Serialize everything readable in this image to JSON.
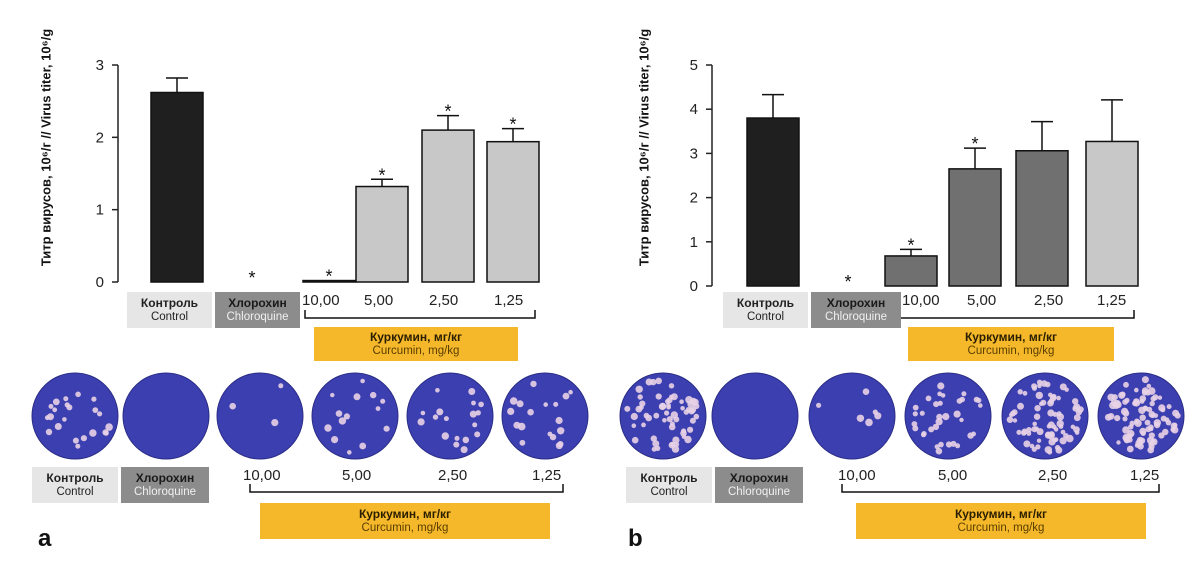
{
  "chart_data": [
    {
      "type": "bar",
      "panel": "a",
      "ylabel": "Титр вирусов, 10⁶/г // Virus titer, 10⁶/g",
      "ylim": [
        0,
        3
      ],
      "yticks": [
        "0",
        "1",
        "2",
        "3"
      ],
      "categories": [
        "Контроль Control",
        "Хлорохин Chloroquine",
        "10,00",
        "5,00",
        "2,50",
        "1,25"
      ],
      "values": [
        2.62,
        0.0,
        0.02,
        1.32,
        2.1,
        1.94
      ],
      "errors": [
        0.2,
        0.0,
        0.0,
        0.1,
        0.2,
        0.18
      ],
      "significant": [
        false,
        true,
        true,
        true,
        true,
        true
      ],
      "colors": [
        "#1f1f1f",
        "#ffffff",
        "#ffffff",
        "#c8c8c8",
        "#c8c8c8",
        "#c8c8c8"
      ]
    },
    {
      "type": "bar",
      "panel": "b",
      "ylabel": "Титр вирусов, 10⁶/г // Virus titer, 10⁶/g",
      "ylim": [
        0,
        5
      ],
      "yticks": [
        "0",
        "1",
        "2",
        "3",
        "4",
        "5"
      ],
      "categories": [
        "Контроль Control",
        "Хлорохин Chloroquine",
        "10,00",
        "5,00",
        "2,50",
        "1,25"
      ],
      "values": [
        3.8,
        0.0,
        0.68,
        2.65,
        3.06,
        3.27
      ],
      "errors": [
        0.53,
        0.0,
        0.15,
        0.47,
        0.66,
        0.94
      ],
      "significant": [
        false,
        true,
        true,
        true,
        false,
        false
      ],
      "colors": [
        "#1f1f1f",
        "#ffffff",
        "#707070",
        "#707070",
        "#707070",
        "#c8c8c8"
      ]
    }
  ],
  "labels": {
    "control_ru": "Контроль",
    "control_en": "Control",
    "chloroquine_ru": "Хлорохин",
    "chloroquine_en": "Chloroquine",
    "curcumin_ru": "Куркумин, мг/кг",
    "curcumin_en": "Curcumin, mg/kg",
    "doses": [
      "10,00",
      "5,00",
      "2,50",
      "1,25"
    ],
    "asterisk": "*",
    "panel_a": "a",
    "panel_b": "b"
  },
  "plaques": {
    "a": [
      22,
      0,
      3,
      14,
      18,
      18
    ],
    "b": [
      60,
      0,
      6,
      34,
      75,
      90
    ]
  },
  "colors": {
    "plate_blue": "#3c3fb0",
    "plaque": "#e8d2e6",
    "curcumin_box": "#f5b82a",
    "chloroquine_box": "#8c8c8c",
    "control_box": "#e6e6e6"
  }
}
